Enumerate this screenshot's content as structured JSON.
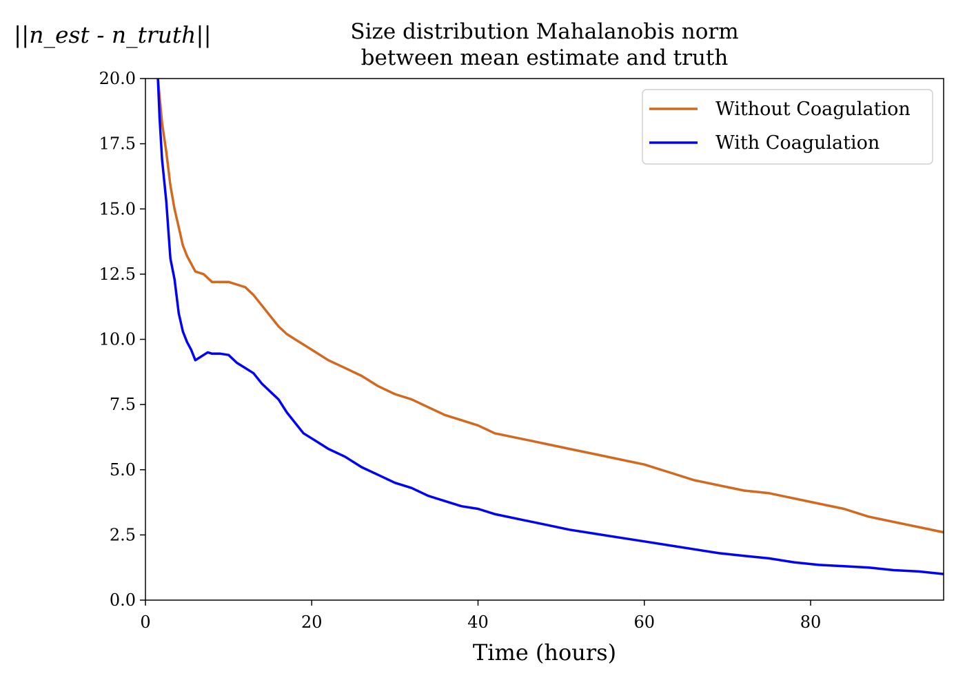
{
  "chart_data": {
    "type": "line",
    "title_lines": [
      "Size distribution Mahalanobis norm",
      "between mean estimate and truth"
    ],
    "ylabel": "||n_est - n_truth||",
    "xlabel": "Time (hours)",
    "xlim": [
      0,
      96
    ],
    "ylim": [
      0,
      20
    ],
    "xticks": [
      0,
      20,
      40,
      60,
      80
    ],
    "yticks": [
      0,
      2.5,
      5,
      7.5,
      10,
      12.5,
      15,
      17.5,
      20
    ],
    "xtick_labels": [
      "0",
      "20",
      "40",
      "60",
      "80"
    ],
    "ytick_labels": [
      "0.0",
      "2.5",
      "5.0",
      "7.5",
      "10.0",
      "12.5",
      "15.0",
      "17.5",
      "20.0"
    ],
    "grid": false,
    "legend_position": "top-right",
    "series": [
      {
        "name": "Without Coagulation",
        "color": "#D2691E",
        "x": [
          1.5,
          2,
          2.5,
          3,
          3.5,
          4,
          4.5,
          5,
          6,
          7,
          8,
          9,
          10,
          11,
          12,
          13,
          14,
          15,
          16,
          17,
          18,
          20,
          22,
          24,
          26,
          28,
          30,
          32,
          34,
          36,
          38,
          40,
          42,
          45,
          48,
          51,
          54,
          57,
          60,
          63,
          66,
          69,
          72,
          75,
          78,
          81,
          84,
          87,
          90,
          93,
          96
        ],
        "y": [
          20.0,
          18.3,
          17.2,
          15.9,
          15.0,
          14.3,
          13.6,
          13.2,
          12.6,
          12.5,
          12.2,
          12.2,
          12.2,
          12.1,
          12.0,
          11.7,
          11.3,
          10.9,
          10.5,
          10.2,
          10.0,
          9.6,
          9.2,
          8.9,
          8.6,
          8.2,
          7.9,
          7.7,
          7.4,
          7.1,
          6.9,
          6.7,
          6.4,
          6.2,
          6.0,
          5.8,
          5.6,
          5.4,
          5.2,
          4.9,
          4.6,
          4.4,
          4.2,
          4.1,
          3.9,
          3.7,
          3.5,
          3.2,
          3.0,
          2.8,
          2.6
        ]
      },
      {
        "name": "With Coagulation",
        "color": "#0000FF",
        "x": [
          1.5,
          1.7,
          2,
          2.5,
          3,
          3.5,
          4,
          4.5,
          5,
          5.5,
          6,
          6.5,
          7,
          7.5,
          8,
          9,
          10,
          11,
          12,
          13,
          14,
          15,
          16,
          17,
          18,
          19,
          20,
          22,
          24,
          26,
          28,
          30,
          32,
          34,
          36,
          38,
          40,
          42,
          45,
          48,
          51,
          54,
          57,
          60,
          63,
          66,
          69,
          72,
          75,
          78,
          81,
          84,
          87,
          90,
          93,
          96
        ],
        "y": [
          20.0,
          18.5,
          16.9,
          15.3,
          13.1,
          12.3,
          11.0,
          10.3,
          9.9,
          9.6,
          9.2,
          9.3,
          9.4,
          9.5,
          9.45,
          9.45,
          9.4,
          9.1,
          8.9,
          8.7,
          8.3,
          8.0,
          7.7,
          7.2,
          6.8,
          6.4,
          6.2,
          5.8,
          5.5,
          5.1,
          4.8,
          4.5,
          4.3,
          4.0,
          3.8,
          3.6,
          3.5,
          3.3,
          3.1,
          2.9,
          2.7,
          2.55,
          2.4,
          2.25,
          2.1,
          1.95,
          1.8,
          1.7,
          1.6,
          1.45,
          1.35,
          1.3,
          1.25,
          1.15,
          1.1,
          1.0
        ]
      }
    ]
  }
}
